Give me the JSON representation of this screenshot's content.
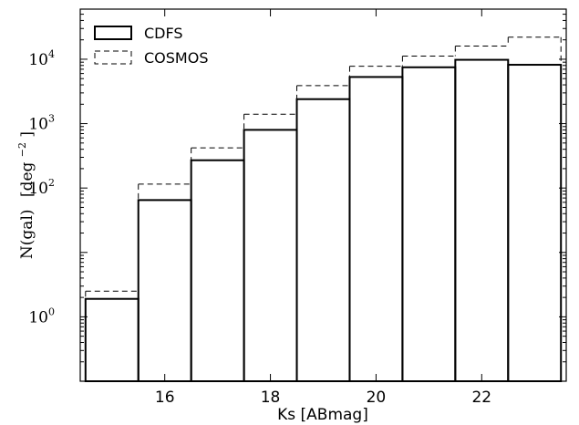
{
  "chart_data": {
    "type": "bar",
    "subtype": "histogram-step",
    "xlabel": "Ks [ABmag]",
    "ylabel_main": "N(gal)",
    "ylabel_unit_base": "[deg",
    "ylabel_unit_exp": "−2",
    "ylabel_unit_close": "]",
    "xlim": [
      14.4,
      23.6
    ],
    "ylim": [
      0.1,
      60000
    ],
    "y_scale": "log",
    "grid": false,
    "legend_placement": "top-left",
    "bin_edges": [
      14.5,
      15.5,
      16.5,
      17.5,
      18.5,
      19.5,
      20.5,
      21.5,
      22.5,
      23.5
    ],
    "x_ticks": [
      16,
      18,
      20,
      22
    ],
    "x_tick_labels": [
      "16",
      "18",
      "20",
      "22"
    ],
    "y_ticks": [
      1,
      100,
      1000,
      10000
    ],
    "y_tick_base": "10",
    "y_tick_exps": [
      "0",
      "2",
      "3",
      "4"
    ],
    "series": [
      {
        "name": "CDFS",
        "style": "solid-bars",
        "color": "#000000",
        "values": [
          1.9,
          65,
          270,
          800,
          2400,
          5300,
          7500,
          9800,
          8200
        ]
      },
      {
        "name": "COSMOS",
        "style": "dashed-step",
        "color": "#000000",
        "values": [
          2.5,
          115,
          420,
          1400,
          3900,
          7800,
          11200,
          16000,
          22000
        ]
      }
    ]
  }
}
